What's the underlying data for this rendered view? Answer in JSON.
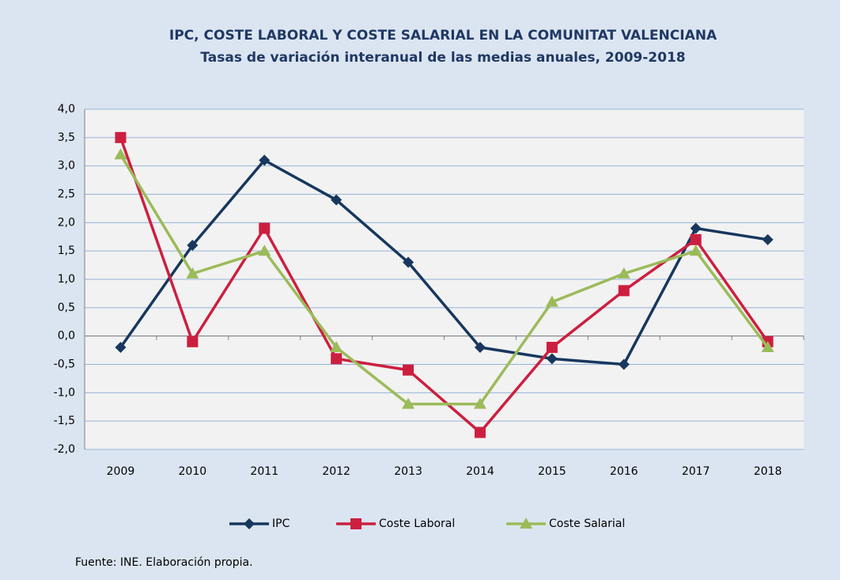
{
  "chart_data": {
    "type": "line",
    "title": "IPC, COSTE LABORAL Y COSTE SALARIAL EN LA COMUNITAT VALENCIANA",
    "subtitle": "Tasas de variación interanual de las medias anuales, 2009-2018",
    "categories": [
      "2009",
      "2010",
      "2011",
      "2012",
      "2013",
      "2014",
      "2015",
      "2016",
      "2017",
      "2018"
    ],
    "series": [
      {
        "name": "IPC",
        "color": "#17375e",
        "marker": "diamond",
        "values": [
          -0.2,
          1.6,
          3.1,
          2.4,
          1.3,
          -0.2,
          -0.4,
          -0.5,
          1.9,
          1.7
        ]
      },
      {
        "name": "Coste Laboral",
        "color": "#cc1f3f",
        "marker": "square",
        "values": [
          3.5,
          -0.1,
          1.9,
          -0.4,
          -0.6,
          -1.7,
          -0.2,
          0.8,
          1.7,
          -0.1
        ]
      },
      {
        "name": "Coste Salarial",
        "color": "#9bbb59",
        "marker": "triangle",
        "values": [
          3.2,
          1.1,
          1.5,
          -0.2,
          -1.2,
          -1.2,
          0.6,
          1.1,
          1.5,
          -0.2
        ]
      }
    ],
    "ylim": [
      -2,
      4
    ],
    "yticks": [
      {
        "value": -2,
        "label": "-2,0"
      },
      {
        "value": -1.5,
        "label": "-1,5"
      },
      {
        "value": -1,
        "label": "-1,0"
      },
      {
        "value": -0.5,
        "label": "-0,5"
      },
      {
        "value": 0,
        "label": "0,0"
      },
      {
        "value": 0.5,
        "label": "0,5"
      },
      {
        "value": 1,
        "label": "1,0"
      },
      {
        "value": 1.5,
        "label": "1,5"
      },
      {
        "value": 2,
        "label": "2,0"
      },
      {
        "value": 2.5,
        "label": "2,5"
      },
      {
        "value": 3,
        "label": "3,0"
      },
      {
        "value": 3.5,
        "label": "3,5"
      },
      {
        "value": 4,
        "label": "4,0"
      }
    ],
    "grid": true,
    "legend": "bottom",
    "source": "Fuente: INE. Elaboración propia."
  }
}
